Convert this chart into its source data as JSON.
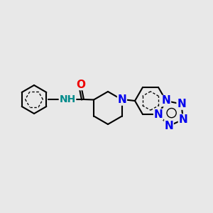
{
  "background_color": "#e8e8e8",
  "bond_color": "#000000",
  "bond_width": 1.5,
  "atom_colors": {
    "N": "#0000ee",
    "O": "#ee0000",
    "NH": "#008b8b",
    "C": "#000000"
  },
  "font_size_atom": 11,
  "fig_width": 3.0,
  "fig_height": 3.0,
  "dpi": 100
}
